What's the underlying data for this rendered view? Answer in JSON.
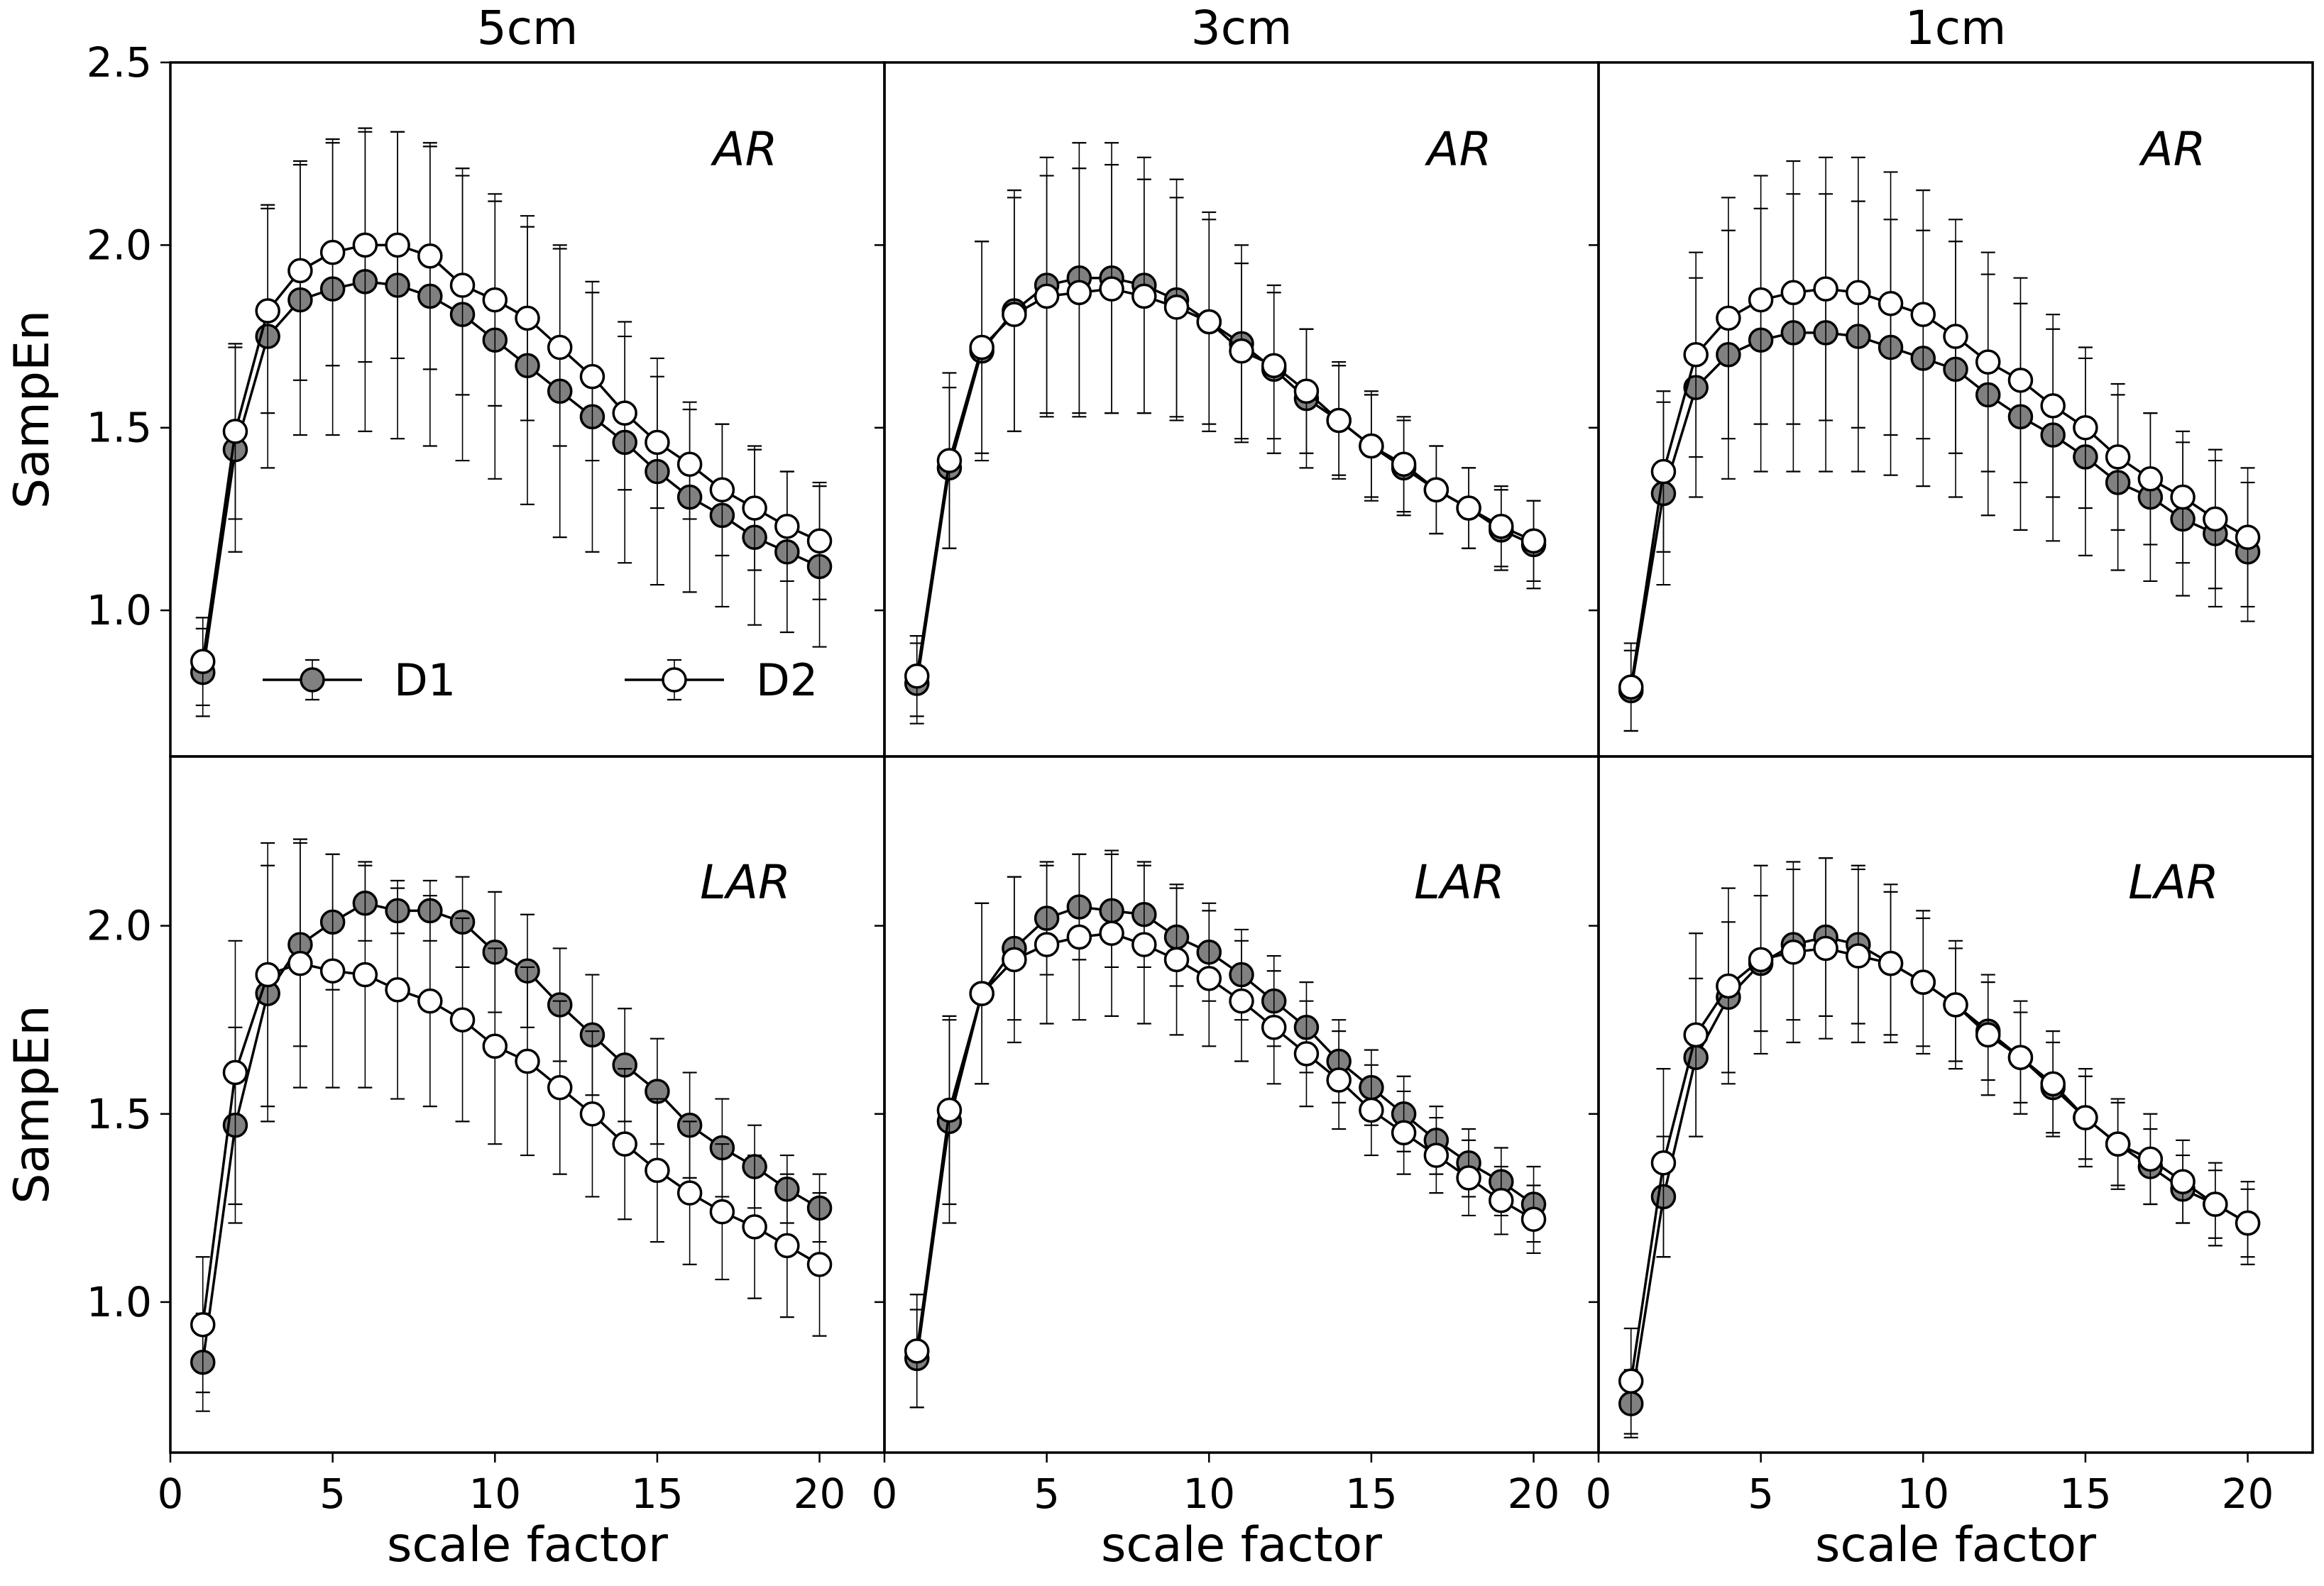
{
  "colors": {
    "d1_fill": "#808080",
    "d2_fill": "#ffffff",
    "stroke": "#000000",
    "errorbar": "#000000"
  },
  "chart_data": {
    "type": "line",
    "layout": "2x3 grid of line plots with error bars",
    "shared_xlim": [
      0,
      22
    ],
    "x_ticks": [
      0,
      5,
      10,
      15,
      20
    ],
    "xlabel": "scale factor",
    "legend": {
      "position": "lower-left of top-left panel",
      "entries": [
        "D1",
        "D2"
      ]
    },
    "rows": [
      {
        "ylabel": "SampEn",
        "ylim": [
          0.6,
          2.5
        ],
        "y_ticks": [
          1.0,
          1.5,
          2.0,
          2.5
        ],
        "y_tick_labels": [
          "1.0",
          "1.5",
          "2.0",
          "2.5"
        ]
      },
      {
        "ylabel": "SampEn",
        "ylim": [
          0.6,
          2.45
        ],
        "y_ticks": [
          1.0,
          1.5,
          2.0
        ],
        "y_tick_labels": [
          "1.0",
          "1.5",
          "2.0"
        ]
      }
    ],
    "panels": [
      {
        "row": 0,
        "col": 0,
        "title": "5cm",
        "condition": "AR",
        "x": [
          1,
          2,
          3,
          4,
          5,
          6,
          7,
          8,
          9,
          10,
          11,
          12,
          13,
          14,
          15,
          16,
          17,
          18,
          19,
          20
        ],
        "series": [
          {
            "name": "D1",
            "values": [
              0.83,
              1.44,
              1.75,
              1.85,
              1.88,
              1.9,
              1.89,
              1.86,
              1.81,
              1.74,
              1.67,
              1.6,
              1.53,
              1.46,
              1.38,
              1.31,
              1.26,
              1.2,
              1.16,
              1.12
            ],
            "err": [
              0.12,
              0.28,
              0.36,
              0.37,
              0.4,
              0.41,
              0.42,
              0.41,
              0.4,
              0.38,
              0.38,
              0.4,
              0.37,
              0.33,
              0.31,
              0.26,
              0.25,
              0.24,
              0.22,
              0.22
            ]
          },
          {
            "name": "D2",
            "values": [
              0.86,
              1.49,
              1.82,
              1.93,
              1.98,
              2.0,
              2.0,
              1.97,
              1.89,
              1.85,
              1.8,
              1.72,
              1.64,
              1.54,
              1.46,
              1.4,
              1.33,
              1.28,
              1.23,
              1.19
            ],
            "err": [
              0.12,
              0.24,
              0.28,
              0.3,
              0.31,
              0.32,
              0.31,
              0.31,
              0.3,
              0.29,
              0.28,
              0.27,
              0.23,
              0.21,
              0.18,
              0.15,
              0.18,
              0.17,
              0.15,
              0.16
            ]
          }
        ]
      },
      {
        "row": 0,
        "col": 1,
        "title": "3cm",
        "condition": "AR",
        "x": [
          1,
          2,
          3,
          4,
          5,
          6,
          7,
          8,
          9,
          10,
          11,
          12,
          13,
          14,
          15,
          16,
          17,
          18,
          19,
          20
        ],
        "series": [
          {
            "name": "D1",
            "values": [
              0.8,
              1.39,
              1.71,
              1.82,
              1.89,
              1.91,
              1.91,
              1.89,
              1.85,
              1.79,
              1.73,
              1.66,
              1.58,
              1.52,
              1.45,
              1.39,
              1.33,
              1.28,
              1.22,
              1.18
            ],
            "err": [
              0.11,
              0.22,
              0.3,
              0.33,
              0.35,
              0.37,
              0.37,
              0.35,
              0.33,
              0.3,
              0.27,
              0.23,
              0.19,
              0.16,
              0.15,
              0.13,
              0.12,
              0.11,
              0.11,
              0.12
            ]
          },
          {
            "name": "D2",
            "values": [
              0.82,
              1.41,
              1.72,
              1.81,
              1.86,
              1.87,
              1.88,
              1.86,
              1.83,
              1.79,
              1.71,
              1.67,
              1.6,
              1.52,
              1.45,
              1.4,
              1.33,
              1.28,
              1.23,
              1.19
            ],
            "err": [
              0.11,
              0.24,
              0.29,
              0.32,
              0.33,
              0.34,
              0.34,
              0.32,
              0.3,
              0.28,
              0.24,
              0.2,
              0.17,
              0.15,
              0.14,
              0.13,
              0.12,
              0.11,
              0.11,
              0.11
            ]
          }
        ]
      },
      {
        "row": 0,
        "col": 2,
        "title": "1cm",
        "condition": "AR",
        "x": [
          1,
          2,
          3,
          4,
          5,
          6,
          7,
          8,
          9,
          10,
          11,
          12,
          13,
          14,
          15,
          16,
          17,
          18,
          19,
          20
        ],
        "series": [
          {
            "name": "D1",
            "values": [
              0.78,
              1.32,
              1.61,
              1.7,
              1.74,
              1.76,
              1.76,
              1.75,
              1.72,
              1.69,
              1.66,
              1.59,
              1.53,
              1.48,
              1.42,
              1.35,
              1.31,
              1.25,
              1.21,
              1.16
            ],
            "err": [
              0.11,
              0.25,
              0.3,
              0.34,
              0.36,
              0.38,
              0.38,
              0.37,
              0.35,
              0.35,
              0.35,
              0.33,
              0.31,
              0.29,
              0.27,
              0.24,
              0.23,
              0.21,
              0.2,
              0.19
            ]
          },
          {
            "name": "D2",
            "values": [
              0.79,
              1.38,
              1.7,
              1.8,
              1.85,
              1.87,
              1.88,
              1.87,
              1.84,
              1.81,
              1.75,
              1.68,
              1.63,
              1.56,
              1.5,
              1.42,
              1.36,
              1.31,
              1.25,
              1.2
            ],
            "err": [
              0.12,
              0.22,
              0.28,
              0.33,
              0.34,
              0.36,
              0.36,
              0.37,
              0.36,
              0.34,
              0.32,
              0.3,
              0.28,
              0.25,
              0.22,
              0.2,
              0.18,
              0.18,
              0.19,
              0.19
            ]
          }
        ]
      },
      {
        "row": 1,
        "col": 0,
        "title": "",
        "condition": "LAR",
        "x": [
          1,
          2,
          3,
          4,
          5,
          6,
          7,
          8,
          9,
          10,
          11,
          12,
          13,
          14,
          15,
          16,
          17,
          18,
          19,
          20
        ],
        "series": [
          {
            "name": "D1",
            "values": [
              0.84,
              1.47,
              1.82,
              1.95,
              2.01,
              2.06,
              2.04,
              2.04,
              2.01,
              1.93,
              1.88,
              1.79,
              1.71,
              1.63,
              1.56,
              1.47,
              1.41,
              1.36,
              1.3,
              1.25
            ],
            "err": [
              0.13,
              0.26,
              0.34,
              0.27,
              0.18,
              0.1,
              0.06,
              0.08,
              0.12,
              0.16,
              0.15,
              0.15,
              0.16,
              0.15,
              0.14,
              0.14,
              0.13,
              0.11,
              0.09,
              0.09
            ]
          },
          {
            "name": "D2",
            "values": [
              0.94,
              1.61,
              1.87,
              1.9,
              1.88,
              1.87,
              1.83,
              1.8,
              1.75,
              1.68,
              1.64,
              1.57,
              1.5,
              1.42,
              1.35,
              1.29,
              1.24,
              1.2,
              1.15,
              1.1
            ],
            "err": [
              0.18,
              0.35,
              0.35,
              0.33,
              0.31,
              0.3,
              0.29,
              0.28,
              0.27,
              0.26,
              0.25,
              0.23,
              0.22,
              0.2,
              0.19,
              0.19,
              0.18,
              0.19,
              0.19,
              0.19
            ]
          }
        ]
      },
      {
        "row": 1,
        "col": 1,
        "title": "",
        "condition": "LAR",
        "x": [
          1,
          2,
          3,
          4,
          5,
          6,
          7,
          8,
          9,
          10,
          11,
          12,
          13,
          14,
          15,
          16,
          17,
          18,
          19,
          20
        ],
        "series": [
          {
            "name": "D1",
            "values": [
              0.85,
              1.48,
              1.82,
              1.94,
              2.02,
              2.05,
              2.04,
              2.03,
              1.97,
              1.93,
              1.87,
              1.8,
              1.73,
              1.64,
              1.57,
              1.5,
              1.43,
              1.37,
              1.32,
              1.26
            ],
            "err": [
              0.13,
              0.27,
              0.24,
              0.19,
              0.15,
              0.14,
              0.15,
              0.14,
              0.13,
              0.13,
              0.12,
              0.12,
              0.12,
              0.11,
              0.1,
              0.1,
              0.09,
              0.09,
              0.09,
              0.1
            ]
          },
          {
            "name": "D2",
            "values": [
              0.87,
              1.51,
              1.82,
              1.91,
              1.95,
              1.97,
              1.98,
              1.95,
              1.91,
              1.86,
              1.8,
              1.73,
              1.66,
              1.59,
              1.51,
              1.45,
              1.39,
              1.33,
              1.27,
              1.22
            ],
            "err": [
              0.15,
              0.25,
              0.24,
              0.22,
              0.21,
              0.22,
              0.22,
              0.21,
              0.2,
              0.18,
              0.16,
              0.15,
              0.14,
              0.13,
              0.12,
              0.11,
              0.1,
              0.1,
              0.09,
              0.09
            ]
          }
        ]
      },
      {
        "row": 1,
        "col": 2,
        "title": "",
        "condition": "LAR",
        "x": [
          1,
          2,
          3,
          4,
          5,
          6,
          7,
          8,
          9,
          10,
          11,
          12,
          13,
          14,
          15,
          16,
          17,
          18,
          19,
          20
        ],
        "series": [
          {
            "name": "D1",
            "values": [
              0.73,
              1.28,
              1.65,
              1.81,
              1.9,
              1.95,
              1.97,
              1.95,
              1.9,
              1.85,
              1.79,
              1.72,
              1.65,
              1.57,
              1.49,
              1.42,
              1.36,
              1.3,
              1.26,
              1.21
            ],
            "err": [
              0.09,
              0.16,
              0.21,
              0.2,
              0.18,
              0.2,
              0.21,
              0.21,
              0.19,
              0.17,
              0.15,
              0.13,
              0.12,
              0.12,
              0.11,
              0.11,
              0.1,
              0.09,
              0.09,
              0.09
            ]
          },
          {
            "name": "D2",
            "values": [
              0.79,
              1.37,
              1.71,
              1.84,
              1.91,
              1.93,
              1.94,
              1.92,
              1.9,
              1.85,
              1.79,
              1.71,
              1.65,
              1.58,
              1.49,
              1.42,
              1.38,
              1.32,
              1.26,
              1.21
            ],
            "err": [
              0.14,
              0.25,
              0.27,
              0.26,
              0.25,
              0.24,
              0.24,
              0.23,
              0.21,
              0.19,
              0.17,
              0.16,
              0.15,
              0.14,
              0.13,
              0.12,
              0.12,
              0.11,
              0.11,
              0.11
            ]
          }
        ]
      }
    ]
  }
}
